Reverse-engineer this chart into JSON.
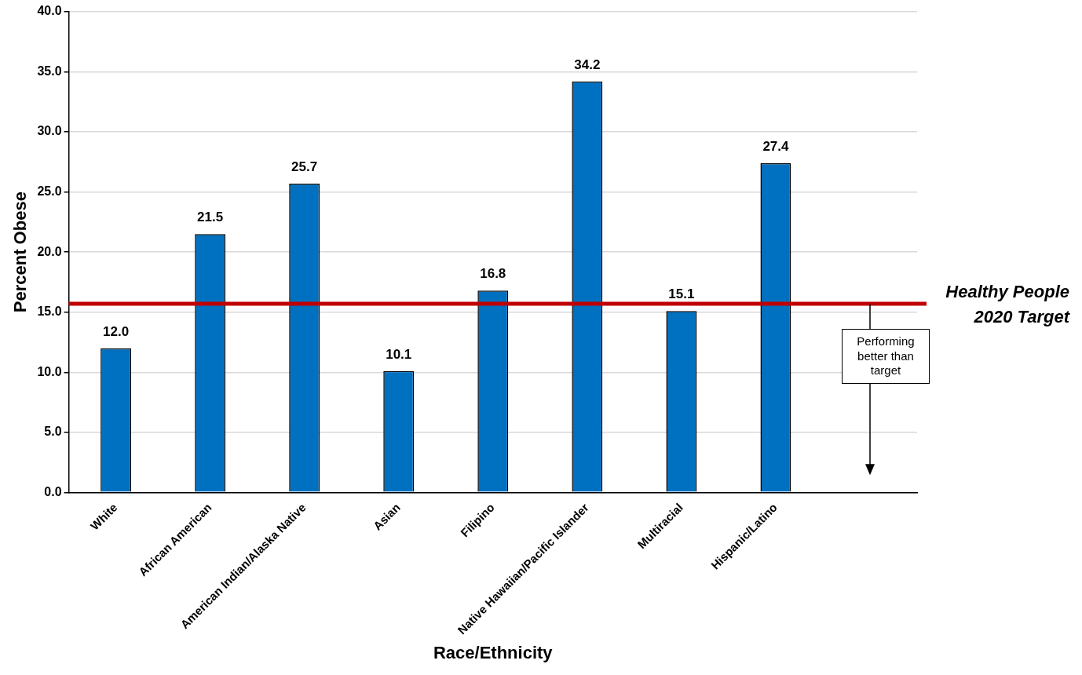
{
  "chart_data": {
    "type": "bar",
    "xlabel": "Race/Ethnicity",
    "ylabel": "Percent Obese",
    "categories": [
      "White",
      "African American",
      "American Indian/Alaska Native",
      "Asian",
      "Filipino",
      "Native Hawaiian/Pacific Islander",
      "Multiracial",
      "Hispanic/Latino",
      null
    ],
    "values": [
      12.0,
      21.5,
      25.7,
      10.1,
      16.8,
      34.2,
      15.1,
      27.4,
      null
    ],
    "value_labels": [
      "12.0",
      "21.5",
      "25.7",
      "10.1",
      "16.8",
      "34.2",
      "15.1",
      "27.4",
      null
    ],
    "color": "#0070c0",
    "ylim": [
      0,
      40
    ],
    "yticks": [
      {
        "value": 0,
        "label": "0.0"
      },
      {
        "value": 5,
        "label": "5.0"
      },
      {
        "value": 10,
        "label": "10.0"
      },
      {
        "value": 15,
        "label": "15.0"
      },
      {
        "value": 20,
        "label": "20.0"
      },
      {
        "value": 25,
        "label": "25.0"
      },
      {
        "value": 30,
        "label": "30.0"
      },
      {
        "value": 35,
        "label": "35.0"
      },
      {
        "value": 40,
        "label": "40.0"
      }
    ],
    "grid": "y",
    "legend": false,
    "ref_lines": [
      {
        "axis": "y",
        "value": 15.7,
        "label": "Healthy People 2020 Target",
        "color": "#c00000"
      }
    ],
    "annotations": [
      "Performing better than target"
    ]
  }
}
